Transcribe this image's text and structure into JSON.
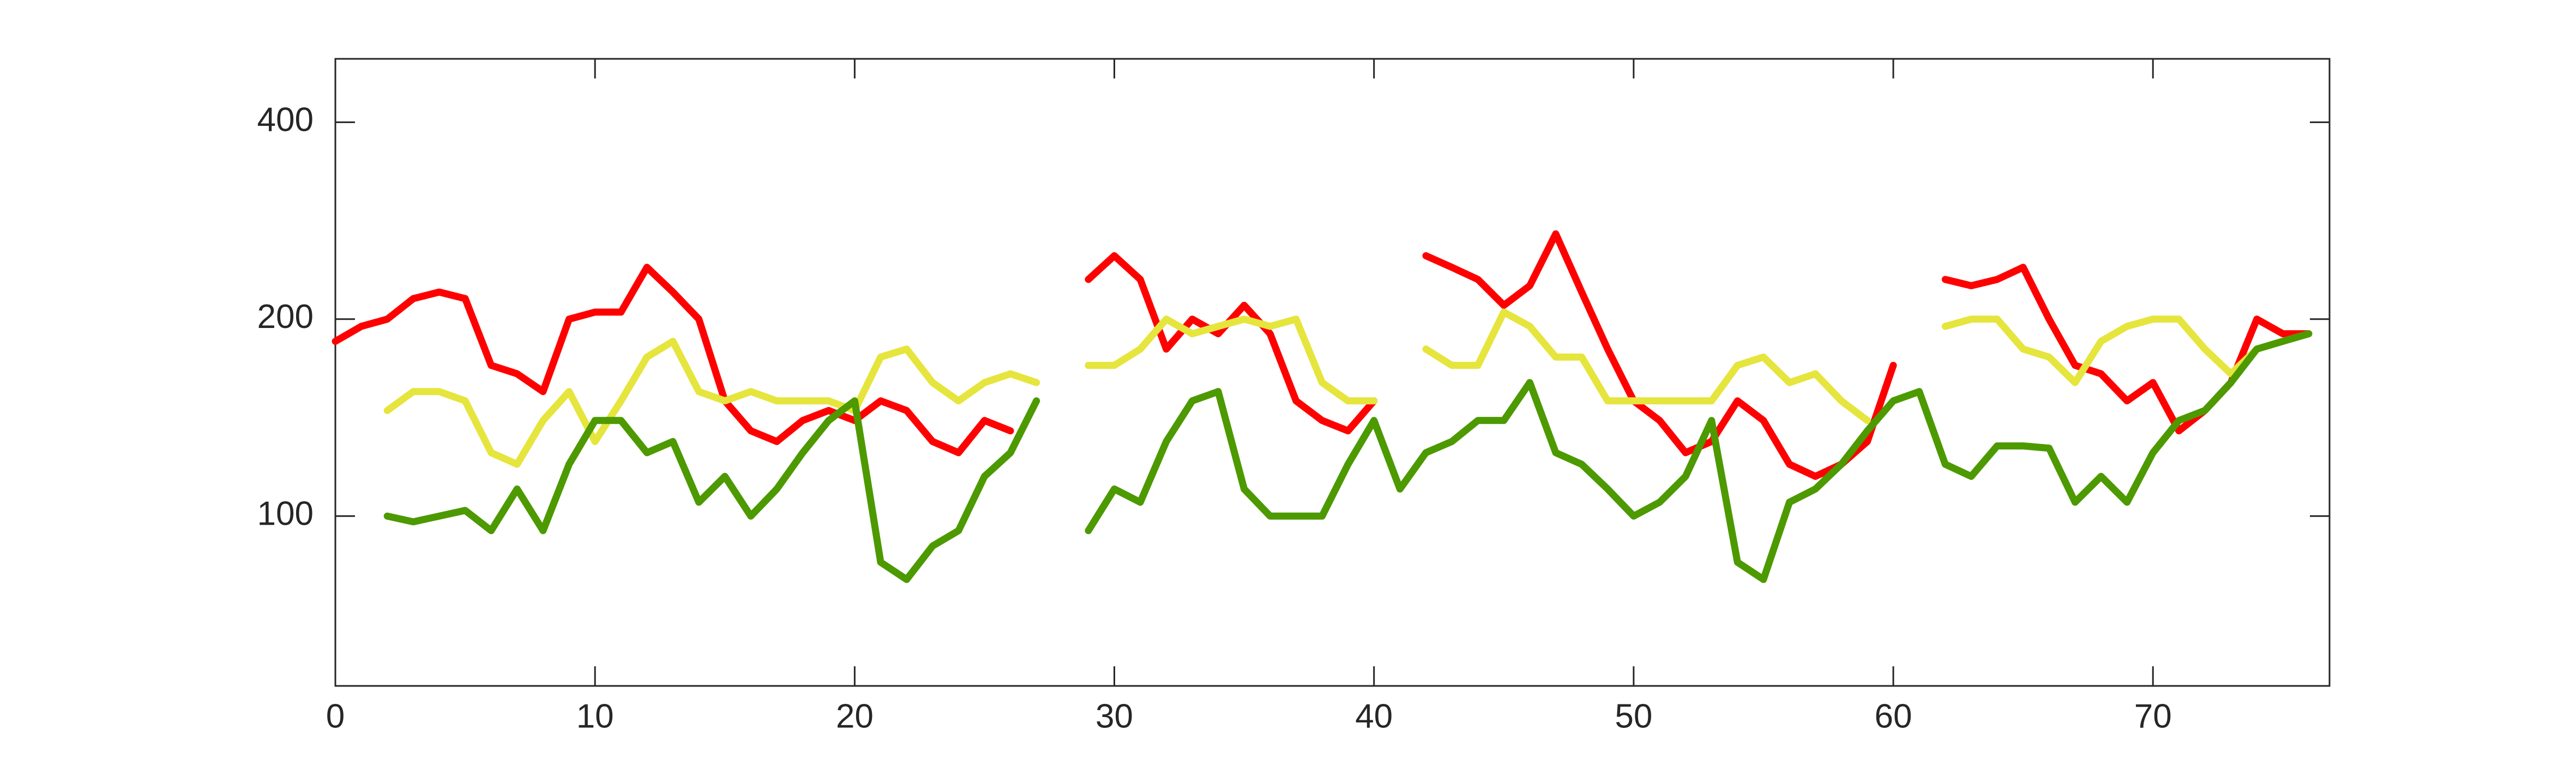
{
  "chart_data": {
    "type": "line",
    "x": [
      0,
      1,
      2,
      3,
      4,
      5,
      6,
      7,
      8,
      9,
      10,
      11,
      12,
      13,
      14,
      15,
      16,
      17,
      18,
      19,
      20,
      21,
      22,
      23,
      24,
      25,
      26,
      27,
      28,
      29,
      30,
      31,
      32,
      33,
      34,
      35,
      36,
      37,
      38,
      39,
      40,
      41,
      42,
      43,
      44,
      45,
      46,
      47,
      48,
      49,
      50,
      51,
      52,
      53,
      54,
      55,
      56,
      57,
      58,
      59,
      60,
      61,
      62,
      63,
      64,
      65,
      66,
      67,
      68,
      69,
      70,
      71,
      72,
      73,
      74,
      75,
      76
    ],
    "series": [
      {
        "color": "#ff0000",
        "values": [
          185,
          195,
          200,
          215,
          220,
          215,
          170,
          165,
          155,
          200,
          205,
          205,
          240,
          220,
          200,
          150,
          135,
          130,
          140,
          145,
          140,
          150,
          145,
          130,
          125,
          140,
          135,
          null,
          null,
          230,
          250,
          230,
          180,
          200,
          190,
          210,
          190,
          150,
          140,
          135,
          150,
          null,
          250,
          240,
          230,
          210,
          225,
          270,
          220,
          180,
          150,
          140,
          125,
          130,
          150,
          140,
          120,
          115,
          120,
          130,
          170,
          null,
          230,
          225,
          230,
          240,
          200,
          170,
          165,
          150,
          160,
          135,
          145,
          160,
          200,
          190,
          190
        ]
      },
      {
        "color": "#e5e53d",
        "values": [
          null,
          null,
          145,
          155,
          155,
          150,
          125,
          120,
          140,
          155,
          130,
          150,
          175,
          185,
          155,
          150,
          155,
          150,
          150,
          150,
          145,
          175,
          180,
          160,
          150,
          160,
          165,
          160,
          null,
          170,
          170,
          180,
          200,
          190,
          195,
          200,
          195,
          200,
          160,
          150,
          150,
          null,
          180,
          170,
          170,
          205,
          195,
          175,
          175,
          150,
          150,
          150,
          150,
          150,
          170,
          175,
          160,
          165,
          150,
          140,
          null,
          null,
          195,
          200,
          200,
          180,
          175,
          160,
          185,
          195,
          200,
          200,
          180,
          165,
          180,
          185,
          190
        ]
      },
      {
        "color": "#4d9900",
        "values": [
          null,
          null,
          100,
          98,
          100,
          102,
          95,
          110,
          95,
          120,
          140,
          140,
          125,
          130,
          105,
          115,
          100,
          110,
          125,
          140,
          150,
          85,
          80,
          90,
          95,
          115,
          125,
          150,
          null,
          95,
          110,
          105,
          130,
          150,
          155,
          110,
          100,
          100,
          100,
          120,
          140,
          110,
          125,
          130,
          140,
          140,
          160,
          125,
          120,
          110,
          100,
          105,
          115,
          140,
          85,
          80,
          105,
          110,
          120,
          135,
          150,
          155,
          120,
          115,
          128,
          128,
          127,
          105,
          115,
          105,
          125,
          140,
          145,
          160,
          180,
          185,
          190
        ]
      }
    ],
    "xlim": [
      0,
      76.8
    ],
    "xticks": [
      0,
      10,
      20,
      30,
      40,
      50,
      60,
      70
    ],
    "ylim": [
      55,
      500
    ],
    "yticks": [
      100,
      200,
      400
    ],
    "ylog": true
  }
}
